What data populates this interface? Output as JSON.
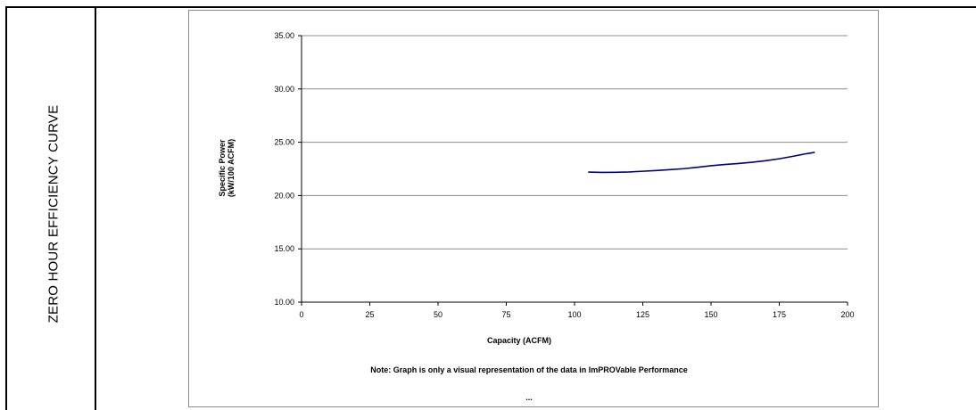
{
  "side_label": "ZERO HOUR EFFICIENCY CURVE",
  "chart_data": {
    "type": "line",
    "title": "",
    "xlabel": "Capacity (ACFM)",
    "ylabel_lines": [
      "Specific Power",
      "(kW/100 ACFM)"
    ],
    "xlim": [
      0,
      200
    ],
    "ylim": [
      10,
      35
    ],
    "x_ticks": [
      0,
      25,
      50,
      75,
      100,
      125,
      150,
      175,
      200
    ],
    "y_ticks": [
      10,
      15,
      20,
      25,
      30,
      35
    ],
    "y_tick_labels": [
      "10.00",
      "15.00",
      "20.00",
      "25.00",
      "30.00",
      "35.00"
    ],
    "grid": true,
    "legend": "none",
    "series": [
      {
        "color": "#000080",
        "x": [
          105,
          110,
          115,
          120,
          125,
          130,
          135,
          140,
          145,
          150,
          155,
          160,
          165,
          170,
          175,
          180,
          185,
          188
        ],
        "y": [
          22.2,
          22.17,
          22.18,
          22.21,
          22.28,
          22.35,
          22.43,
          22.52,
          22.65,
          22.8,
          22.91,
          23.01,
          23.12,
          23.27,
          23.45,
          23.68,
          23.93,
          24.05
        ]
      }
    ],
    "note": "Note:  Graph is only a visual representation of the data in ImPROVable Performance",
    "footer": "..."
  }
}
